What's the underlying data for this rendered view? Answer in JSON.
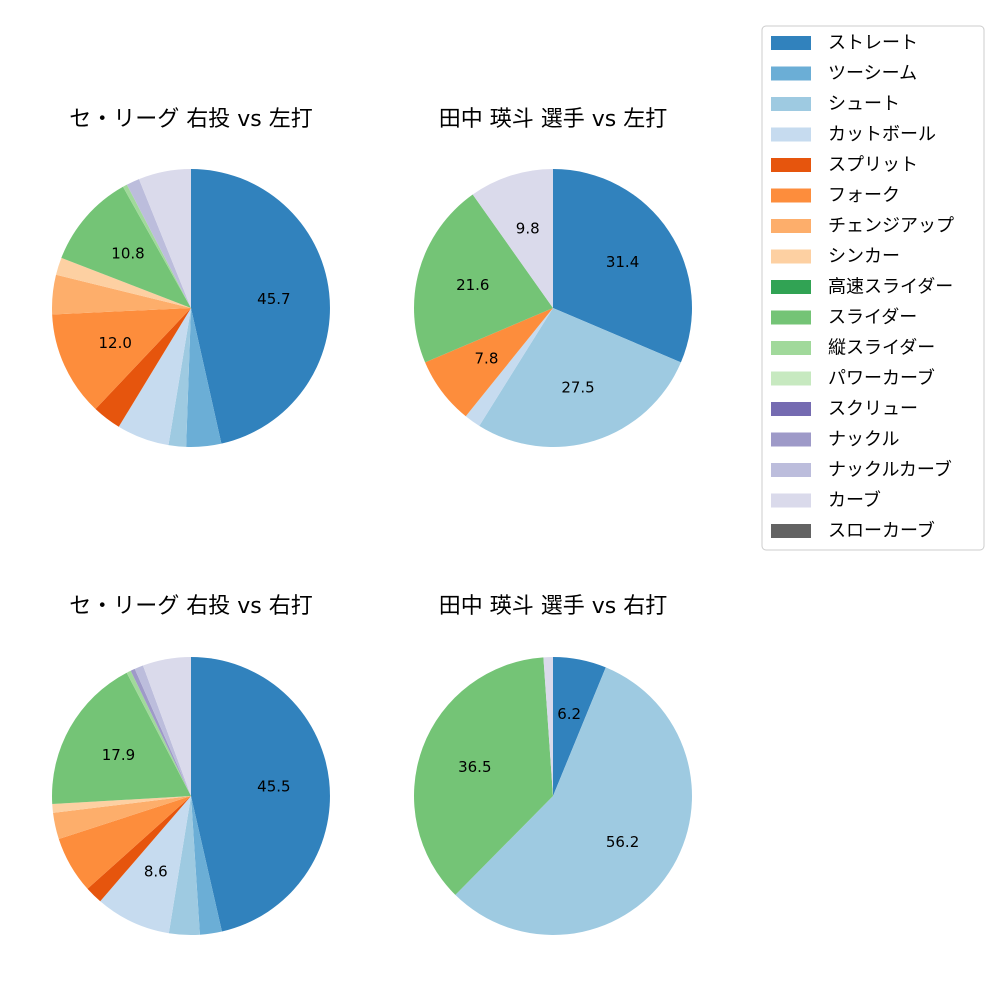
{
  "colors": {
    "ストレート": "#3182bd",
    "ツーシーム": "#6baed6",
    "シュート": "#9ecae1",
    "カットボール": "#c6dbef",
    "スプリット": "#e6550d",
    "フォーク": "#fd8d3c",
    "チェンジアップ": "#fdae6b",
    "シンカー": "#fdd0a2",
    "高速スライダー": "#31a354",
    "スライダー": "#74c476",
    "縦スライダー": "#a1d99b",
    "パワーカーブ": "#c7e9c0",
    "スクリュー": "#756bb1",
    "ナックル": "#9e9ac8",
    "ナックルカーブ": "#bcbddc",
    "カーブ": "#dadaeb",
    "スローカーブ": "#636363"
  },
  "legend": {
    "entries": [
      "ストレート",
      "ツーシーム",
      "シュート",
      "カットボール",
      "スプリット",
      "フォーク",
      "チェンジアップ",
      "シンカー",
      "高速スライダー",
      "スライダー",
      "縦スライダー",
      "パワーカーブ",
      "スクリュー",
      "ナックル",
      "ナックルカーブ",
      "カーブ",
      "スローカーブ"
    ],
    "placement": "right"
  },
  "chart_data": [
    {
      "type": "pie",
      "title": "セ・リーグ 右投 vs 左打",
      "slices": [
        {
          "label": "ストレート",
          "value": 45.7,
          "show": true
        },
        {
          "label": "ツーシーム",
          "value": 4.0,
          "show": false
        },
        {
          "label": "シュート",
          "value": 2.0,
          "show": false
        },
        {
          "label": "カットボール",
          "value": 6.0,
          "show": false
        },
        {
          "label": "スプリット",
          "value": 3.3,
          "show": false
        },
        {
          "label": "フォーク",
          "value": 12.0,
          "show": true
        },
        {
          "label": "チェンジアップ",
          "value": 4.5,
          "show": false
        },
        {
          "label": "シンカー",
          "value": 2.0,
          "show": false
        },
        {
          "label": "スライダー",
          "value": 10.8,
          "show": true
        },
        {
          "label": "縦スライダー",
          "value": 0.5,
          "show": false
        },
        {
          "label": "ナックルカーブ",
          "value": 1.5,
          "show": false
        },
        {
          "label": "カーブ",
          "value": 6.0,
          "show": false
        }
      ]
    },
    {
      "type": "pie",
      "title": "田中 瑛斗 選手 vs 左打",
      "slices": [
        {
          "label": "ストレート",
          "value": 31.4,
          "show": true
        },
        {
          "label": "シュート",
          "value": 27.5,
          "show": true
        },
        {
          "label": "カットボール",
          "value": 1.9,
          "show": false
        },
        {
          "label": "フォーク",
          "value": 7.8,
          "show": true
        },
        {
          "label": "スライダー",
          "value": 21.6,
          "show": true
        },
        {
          "label": "カーブ",
          "value": 9.8,
          "show": true
        }
      ]
    },
    {
      "type": "pie",
      "title": "セ・リーグ 右投 vs 右打",
      "slices": [
        {
          "label": "ストレート",
          "value": 45.5,
          "show": true
        },
        {
          "label": "ツーシーム",
          "value": 2.5,
          "show": false
        },
        {
          "label": "シュート",
          "value": 3.5,
          "show": false
        },
        {
          "label": "カットボール",
          "value": 8.6,
          "show": true
        },
        {
          "label": "スプリット",
          "value": 2.0,
          "show": false
        },
        {
          "label": "フォーク",
          "value": 6.5,
          "show": false
        },
        {
          "label": "チェンジアップ",
          "value": 3.0,
          "show": false
        },
        {
          "label": "シンカー",
          "value": 1.0,
          "show": false
        },
        {
          "label": "スライダー",
          "value": 17.9,
          "show": true
        },
        {
          "label": "縦スライダー",
          "value": 0.5,
          "show": false
        },
        {
          "label": "ナックル",
          "value": 0.5,
          "show": false
        },
        {
          "label": "ナックルカーブ",
          "value": 1.0,
          "show": false
        },
        {
          "label": "カーブ",
          "value": 5.5,
          "show": false
        }
      ]
    },
    {
      "type": "pie",
      "title": "田中 瑛斗 選手 vs 右打",
      "slices": [
        {
          "label": "ストレート",
          "value": 6.2,
          "show": true
        },
        {
          "label": "シュート",
          "value": 56.2,
          "show": true
        },
        {
          "label": "スライダー",
          "value": 36.5,
          "show": true
        },
        {
          "label": "カーブ",
          "value": 1.1,
          "show": false
        }
      ]
    }
  ]
}
